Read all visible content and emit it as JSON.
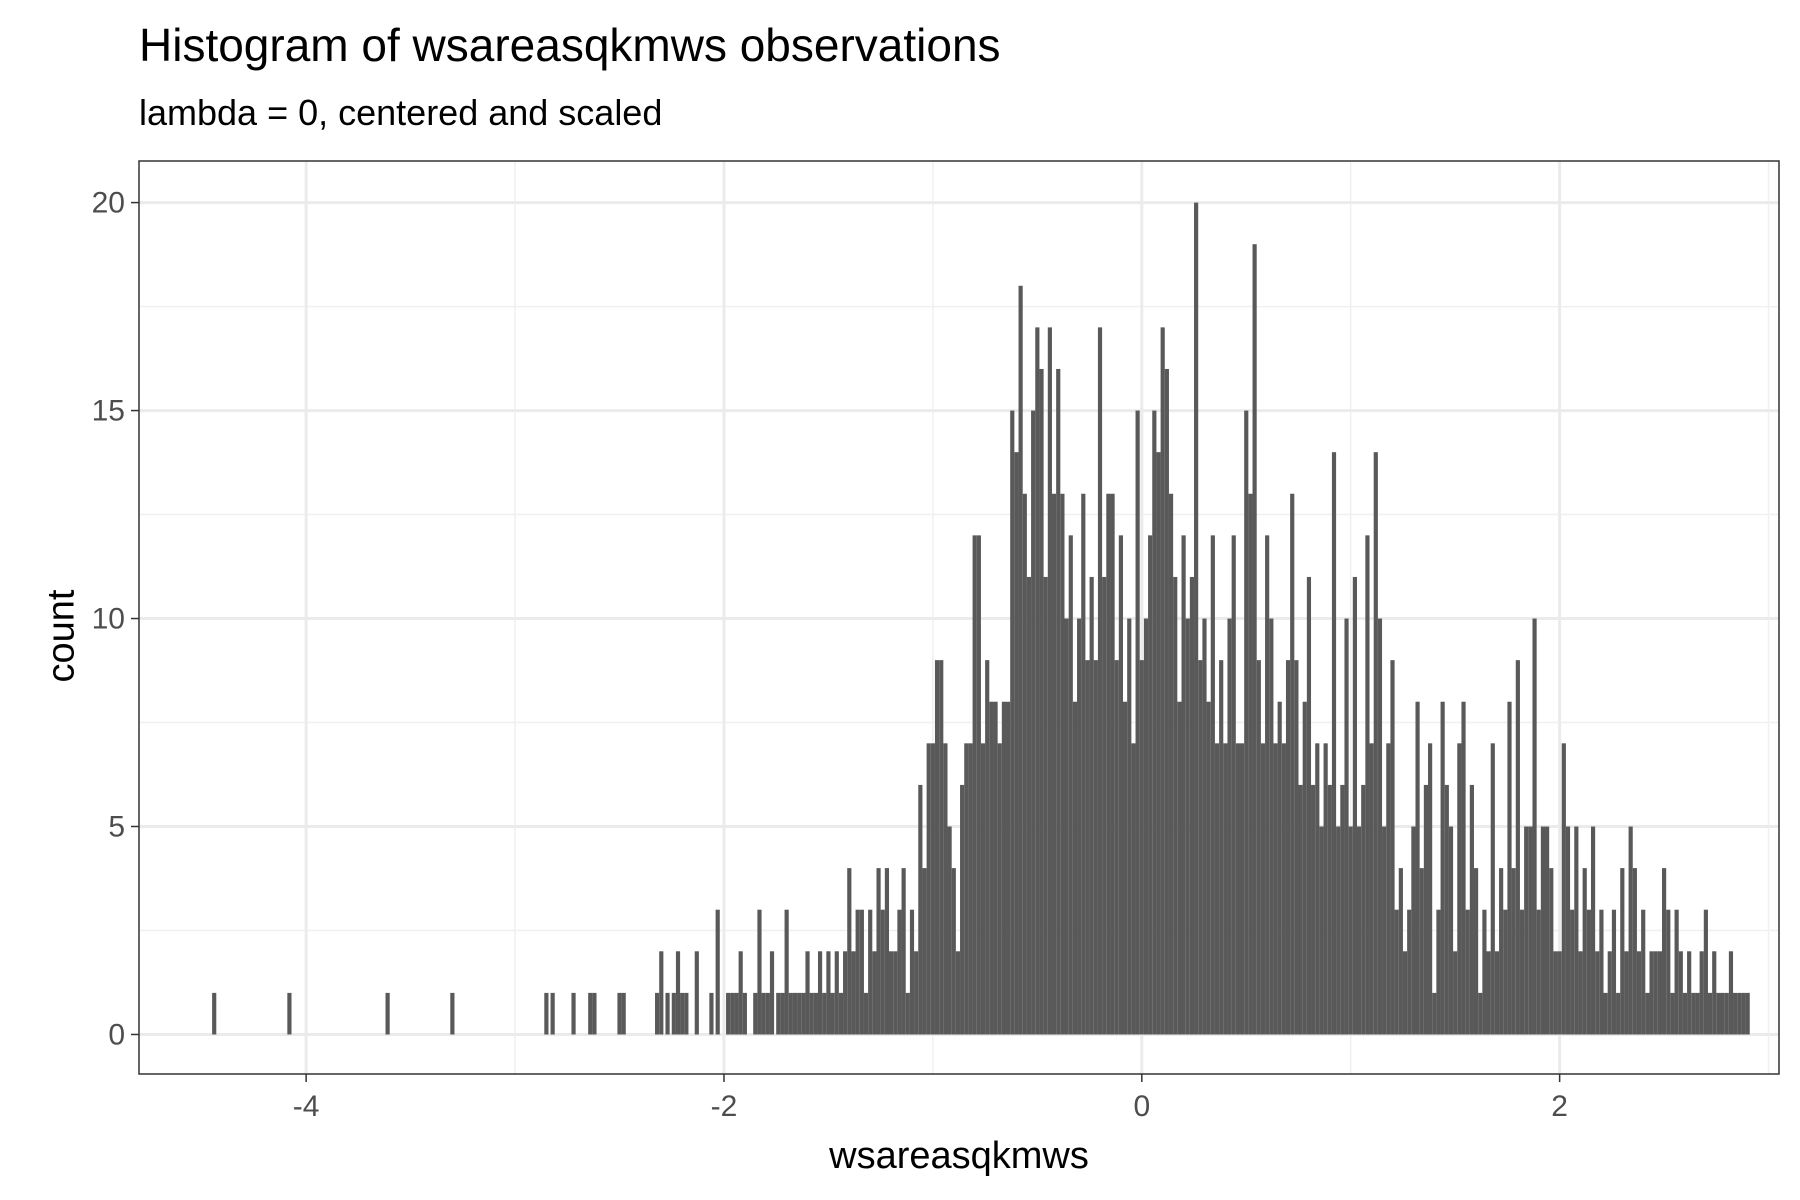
{
  "chart_data": {
    "type": "bar",
    "title": "Histogram of wsareasqkmws observations",
    "subtitle": "lambda = 0, centered and scaled",
    "xlabel": "wsareasqkmws",
    "ylabel": "count",
    "xlim": [
      -4.8,
      3.05
    ],
    "ylim": [
      -0.95,
      21
    ],
    "x_ticks": [
      -4,
      -2,
      0,
      2
    ],
    "x_tick_labels": [
      "-4",
      "-2",
      "0",
      "2"
    ],
    "y_ticks": [
      0,
      5,
      10,
      15,
      20
    ],
    "y_tick_labels": [
      "0",
      "5",
      "10",
      "15",
      "20"
    ],
    "grid": true,
    "bar_color": "#595959",
    "bin_width": 0.02,
    "bins": [
      [
        -4.44,
        1
      ],
      [
        -4.08,
        1
      ],
      [
        -3.61,
        1
      ],
      [
        -3.3,
        1
      ],
      [
        -2.85,
        1
      ],
      [
        -2.82,
        1
      ],
      [
        -2.72,
        1
      ],
      [
        -2.64,
        1
      ],
      [
        -2.62,
        1
      ],
      [
        -2.5,
        1
      ],
      [
        -2.48,
        1
      ],
      [
        -2.32,
        1
      ],
      [
        -2.3,
        2
      ],
      [
        -2.27,
        1
      ],
      [
        -2.24,
        1
      ],
      [
        -2.22,
        2
      ],
      [
        -2.2,
        1
      ],
      [
        -2.18,
        1
      ],
      [
        -2.13,
        2
      ],
      [
        -2.06,
        1
      ],
      [
        -2.03,
        3
      ],
      [
        -1.98,
        1
      ],
      [
        -1.96,
        1
      ],
      [
        -1.94,
        1
      ],
      [
        -1.92,
        2
      ],
      [
        -1.9,
        1
      ],
      [
        -1.85,
        1
      ],
      [
        -1.83,
        3
      ],
      [
        -1.81,
        1
      ],
      [
        -1.79,
        1
      ],
      [
        -1.77,
        2
      ],
      [
        -1.74,
        1
      ],
      [
        -1.72,
        1
      ],
      [
        -1.7,
        3
      ],
      [
        -1.68,
        1
      ],
      [
        -1.66,
        1
      ],
      [
        -1.64,
        1
      ],
      [
        -1.62,
        1
      ],
      [
        -1.6,
        2
      ],
      [
        -1.58,
        1
      ],
      [
        -1.56,
        1
      ],
      [
        -1.54,
        2
      ],
      [
        -1.52,
        1
      ],
      [
        -1.5,
        2
      ],
      [
        -1.48,
        1
      ],
      [
        -1.46,
        2
      ],
      [
        -1.44,
        1
      ],
      [
        -1.42,
        2
      ],
      [
        -1.4,
        4
      ],
      [
        -1.38,
        2
      ],
      [
        -1.36,
        3
      ],
      [
        -1.34,
        3
      ],
      [
        -1.32,
        1
      ],
      [
        -1.3,
        3
      ],
      [
        -1.28,
        2
      ],
      [
        -1.26,
        4
      ],
      [
        -1.24,
        3
      ],
      [
        -1.22,
        4
      ],
      [
        -1.2,
        2
      ],
      [
        -1.18,
        2
      ],
      [
        -1.16,
        3
      ],
      [
        -1.14,
        4
      ],
      [
        -1.12,
        1
      ],
      [
        -1.1,
        3
      ],
      [
        -1.08,
        2
      ],
      [
        -1.06,
        6
      ],
      [
        -1.04,
        4
      ],
      [
        -1.02,
        7
      ],
      [
        -1.0,
        7
      ],
      [
        -0.98,
        9
      ],
      [
        -0.96,
        9
      ],
      [
        -0.94,
        7
      ],
      [
        -0.92,
        5
      ],
      [
        -0.9,
        4
      ],
      [
        -0.88,
        2
      ],
      [
        -0.86,
        6
      ],
      [
        -0.84,
        7
      ],
      [
        -0.82,
        7
      ],
      [
        -0.8,
        12
      ],
      [
        -0.78,
        12
      ],
      [
        -0.76,
        7
      ],
      [
        -0.74,
        9
      ],
      [
        -0.72,
        8
      ],
      [
        -0.7,
        8
      ],
      [
        -0.68,
        7
      ],
      [
        -0.66,
        8
      ],
      [
        -0.64,
        8
      ],
      [
        -0.62,
        15
      ],
      [
        -0.6,
        14
      ],
      [
        -0.58,
        18
      ],
      [
        -0.56,
        13
      ],
      [
        -0.54,
        11
      ],
      [
        -0.52,
        15
      ],
      [
        -0.5,
        17
      ],
      [
        -0.48,
        16
      ],
      [
        -0.46,
        11
      ],
      [
        -0.44,
        17
      ],
      [
        -0.42,
        13
      ],
      [
        -0.4,
        16
      ],
      [
        -0.38,
        13
      ],
      [
        -0.36,
        10
      ],
      [
        -0.34,
        12
      ],
      [
        -0.32,
        8
      ],
      [
        -0.3,
        10
      ],
      [
        -0.28,
        13
      ],
      [
        -0.26,
        9
      ],
      [
        -0.24,
        11
      ],
      [
        -0.22,
        9
      ],
      [
        -0.2,
        17
      ],
      [
        -0.18,
        11
      ],
      [
        -0.16,
        13
      ],
      [
        -0.14,
        13
      ],
      [
        -0.12,
        9
      ],
      [
        -0.1,
        12
      ],
      [
        -0.08,
        8
      ],
      [
        -0.06,
        10
      ],
      [
        -0.04,
        7
      ],
      [
        -0.02,
        15
      ],
      [
        0.0,
        9
      ],
      [
        0.02,
        10
      ],
      [
        0.04,
        12
      ],
      [
        0.06,
        15
      ],
      [
        0.08,
        14
      ],
      [
        0.1,
        17
      ],
      [
        0.12,
        16
      ],
      [
        0.14,
        13
      ],
      [
        0.16,
        11
      ],
      [
        0.18,
        8
      ],
      [
        0.2,
        12
      ],
      [
        0.22,
        10
      ],
      [
        0.24,
        11
      ],
      [
        0.26,
        20
      ],
      [
        0.28,
        9
      ],
      [
        0.3,
        10
      ],
      [
        0.32,
        8
      ],
      [
        0.34,
        12
      ],
      [
        0.36,
        7
      ],
      [
        0.38,
        9
      ],
      [
        0.4,
        7
      ],
      [
        0.42,
        10
      ],
      [
        0.44,
        12
      ],
      [
        0.46,
        7
      ],
      [
        0.48,
        7
      ],
      [
        0.5,
        15
      ],
      [
        0.52,
        13
      ],
      [
        0.54,
        19
      ],
      [
        0.56,
        9
      ],
      [
        0.58,
        7
      ],
      [
        0.6,
        12
      ],
      [
        0.62,
        10
      ],
      [
        0.64,
        7
      ],
      [
        0.66,
        8
      ],
      [
        0.68,
        7
      ],
      [
        0.7,
        9
      ],
      [
        0.72,
        13
      ],
      [
        0.74,
        9
      ],
      [
        0.76,
        6
      ],
      [
        0.78,
        8
      ],
      [
        0.8,
        11
      ],
      [
        0.82,
        6
      ],
      [
        0.84,
        7
      ],
      [
        0.86,
        5
      ],
      [
        0.88,
        7
      ],
      [
        0.9,
        6
      ],
      [
        0.92,
        14
      ],
      [
        0.94,
        5
      ],
      [
        0.96,
        6
      ],
      [
        0.98,
        10
      ],
      [
        1.0,
        5
      ],
      [
        1.02,
        11
      ],
      [
        1.04,
        5
      ],
      [
        1.06,
        6
      ],
      [
        1.08,
        12
      ],
      [
        1.1,
        7
      ],
      [
        1.12,
        14
      ],
      [
        1.14,
        10
      ],
      [
        1.16,
        5
      ],
      [
        1.18,
        7
      ],
      [
        1.2,
        9
      ],
      [
        1.22,
        3
      ],
      [
        1.24,
        4
      ],
      [
        1.26,
        2
      ],
      [
        1.28,
        3
      ],
      [
        1.3,
        5
      ],
      [
        1.32,
        8
      ],
      [
        1.34,
        4
      ],
      [
        1.36,
        6
      ],
      [
        1.38,
        7
      ],
      [
        1.4,
        1
      ],
      [
        1.42,
        3
      ],
      [
        1.44,
        8
      ],
      [
        1.46,
        6
      ],
      [
        1.48,
        5
      ],
      [
        1.5,
        2
      ],
      [
        1.52,
        7
      ],
      [
        1.54,
        8
      ],
      [
        1.56,
        3
      ],
      [
        1.58,
        6
      ],
      [
        1.6,
        4
      ],
      [
        1.62,
        1
      ],
      [
        1.64,
        3
      ],
      [
        1.66,
        2
      ],
      [
        1.68,
        7
      ],
      [
        1.7,
        2
      ],
      [
        1.72,
        4
      ],
      [
        1.74,
        3
      ],
      [
        1.76,
        8
      ],
      [
        1.78,
        4
      ],
      [
        1.8,
        9
      ],
      [
        1.82,
        3
      ],
      [
        1.84,
        5
      ],
      [
        1.86,
        5
      ],
      [
        1.88,
        10
      ],
      [
        1.9,
        3
      ],
      [
        1.92,
        5
      ],
      [
        1.94,
        5
      ],
      [
        1.96,
        4
      ],
      [
        1.98,
        2
      ],
      [
        2.0,
        2
      ],
      [
        2.02,
        7
      ],
      [
        2.04,
        5
      ],
      [
        2.06,
        3
      ],
      [
        2.08,
        5
      ],
      [
        2.1,
        2
      ],
      [
        2.12,
        4
      ],
      [
        2.14,
        3
      ],
      [
        2.16,
        5
      ],
      [
        2.18,
        2
      ],
      [
        2.2,
        3
      ],
      [
        2.22,
        1
      ],
      [
        2.24,
        2
      ],
      [
        2.26,
        3
      ],
      [
        2.28,
        1
      ],
      [
        2.3,
        4
      ],
      [
        2.32,
        2
      ],
      [
        2.34,
        5
      ],
      [
        2.36,
        4
      ],
      [
        2.38,
        2
      ],
      [
        2.4,
        3
      ],
      [
        2.42,
        1
      ],
      [
        2.44,
        2
      ],
      [
        2.46,
        2
      ],
      [
        2.48,
        2
      ],
      [
        2.5,
        4
      ],
      [
        2.52,
        3
      ],
      [
        2.54,
        1
      ],
      [
        2.56,
        3
      ],
      [
        2.58,
        2
      ],
      [
        2.6,
        1
      ],
      [
        2.62,
        2
      ],
      [
        2.64,
        1
      ],
      [
        2.66,
        1
      ],
      [
        2.68,
        2
      ],
      [
        2.7,
        3
      ],
      [
        2.72,
        1
      ],
      [
        2.74,
        2
      ],
      [
        2.76,
        1
      ],
      [
        2.78,
        1
      ],
      [
        2.8,
        1
      ],
      [
        2.82,
        2
      ],
      [
        2.84,
        1
      ],
      [
        2.86,
        1
      ],
      [
        2.88,
        1
      ],
      [
        2.9,
        1
      ]
    ]
  }
}
